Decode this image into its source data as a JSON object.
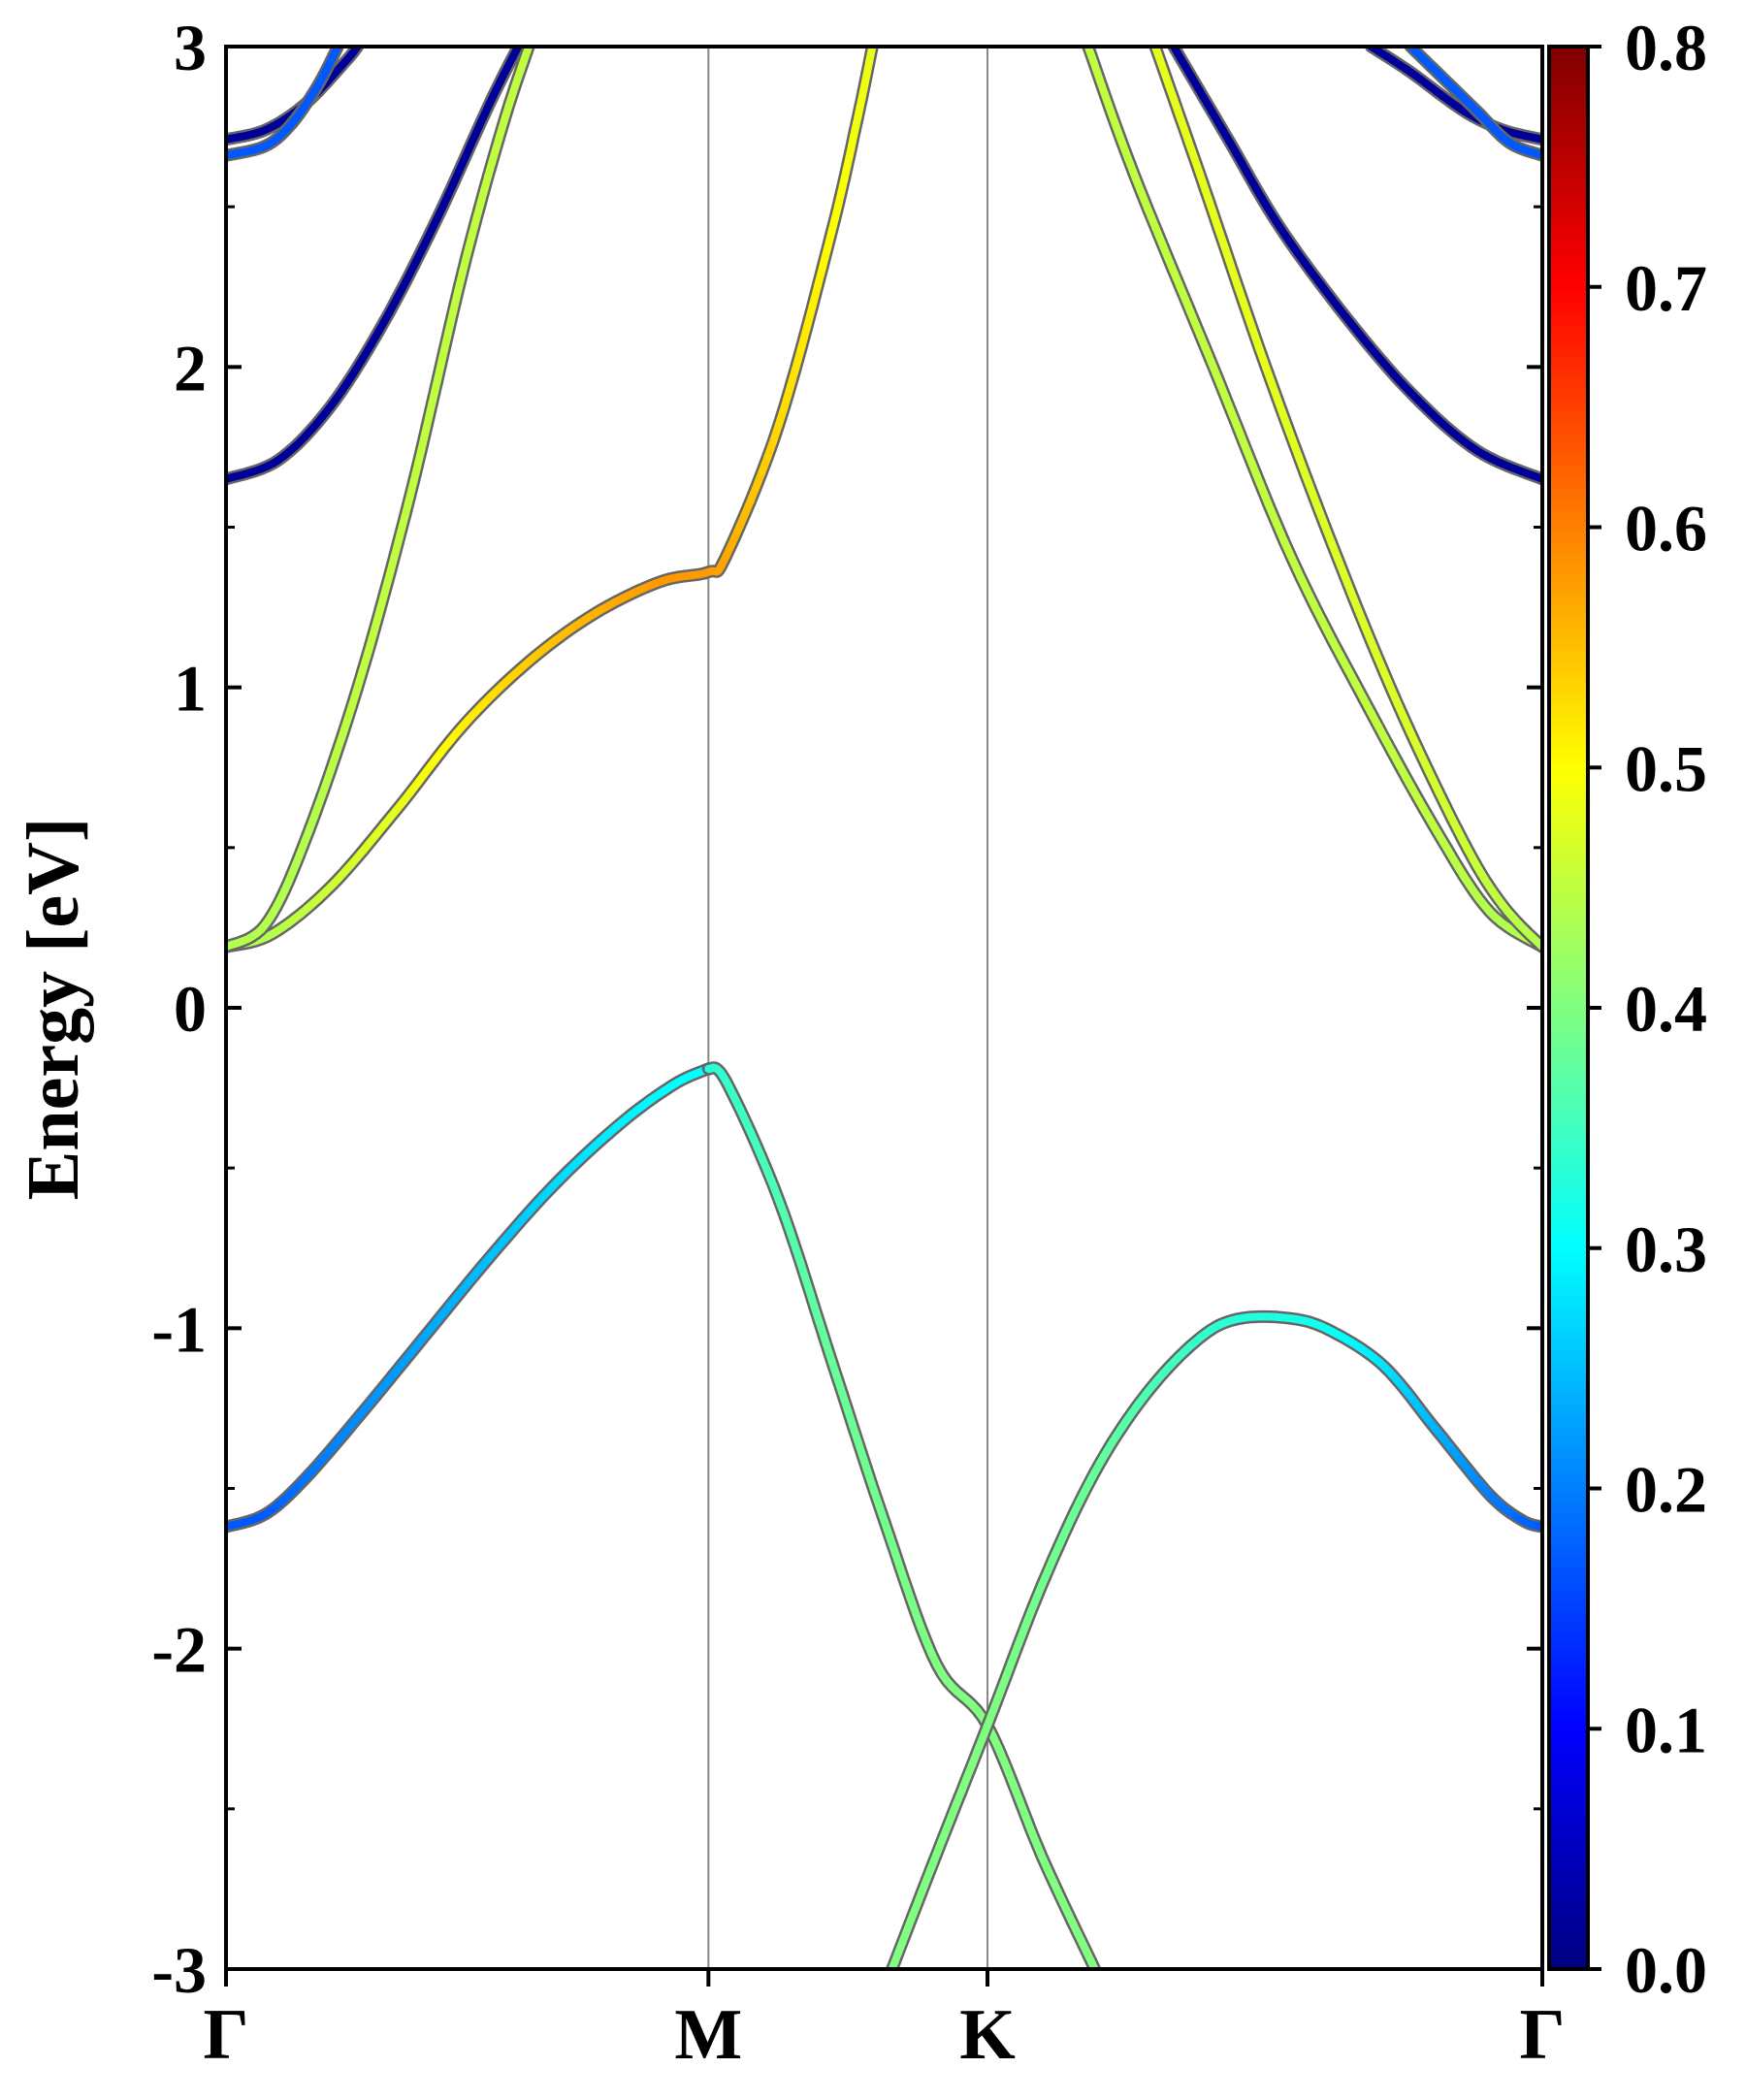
{
  "chart_data": {
    "type": "line",
    "subtype": "electronic band structure with colour-mapped projection weight",
    "title": "",
    "xlabel": "",
    "ylabel": "Energy [eV]",
    "ylim": [
      -3,
      3
    ],
    "y_ticks": [
      "3",
      "2",
      "1",
      "0",
      "-1",
      "-2",
      "-3"
    ],
    "y_minor_step": 0.5,
    "k_path": [
      {
        "label": "Γ",
        "pos": 0.0
      },
      {
        "label": "M",
        "pos": 0.3665
      },
      {
        "label": "K",
        "pos": 0.5785
      },
      {
        "label": "Γ",
        "pos": 1.0
      }
    ],
    "grid": false,
    "colorbar": {
      "colormap": "jet",
      "range": [
        0.0,
        0.8
      ],
      "tick_labels": [
        "0.8",
        "0.7",
        "0.6",
        "0.5",
        "0.4",
        "0.3",
        "0.2",
        "0.1",
        "0.0"
      ],
      "tick_values": [
        0.8,
        0.7,
        0.6,
        0.5,
        0.4,
        0.3,
        0.2,
        0.1,
        0.0
      ],
      "placement": "right"
    },
    "colors": {
      "axis": "#000000",
      "kline": "#888888",
      "band_edge": "#666666"
    },
    "bands": [
      {
        "points": [
          [
            0.0,
            -1.62
          ],
          [
            0.03,
            -1.58
          ],
          [
            0.06,
            -1.47
          ],
          [
            0.1,
            -1.28
          ],
          [
            0.15,
            -1.03
          ],
          [
            0.2,
            -0.78
          ],
          [
            0.25,
            -0.55
          ],
          [
            0.3,
            -0.36
          ],
          [
            0.34,
            -0.24
          ],
          [
            0.3665,
            -0.19
          ]
        ],
        "weights": [
          0.17,
          0.17,
          0.19,
          0.21,
          0.23,
          0.25,
          0.27,
          0.29,
          0.3,
          0.3
        ]
      },
      {
        "points": [
          [
            0.3665,
            -0.19
          ],
          [
            0.38,
            -0.23
          ],
          [
            0.42,
            -0.6
          ],
          [
            0.46,
            -1.1
          ],
          [
            0.5,
            -1.6
          ],
          [
            0.54,
            -2.05
          ],
          [
            0.5785,
            -2.24
          ],
          [
            0.62,
            -2.65
          ],
          [
            0.66,
            -3.0
          ]
        ],
        "weights": [
          0.32,
          0.34,
          0.36,
          0.38,
          0.39,
          0.4,
          0.4,
          0.4,
          0.4
        ]
      },
      {
        "points": [
          [
            0.506,
            -3.0
          ],
          [
            0.54,
            -2.64
          ],
          [
            0.5785,
            -2.24
          ],
          [
            0.62,
            -1.8
          ],
          [
            0.66,
            -1.45
          ],
          [
            0.7,
            -1.2
          ],
          [
            0.74,
            -1.03
          ],
          [
            0.77,
            -0.97
          ],
          [
            0.81,
            -0.97
          ],
          [
            0.84,
            -1.01
          ],
          [
            0.88,
            -1.12
          ],
          [
            0.92,
            -1.32
          ],
          [
            0.96,
            -1.52
          ],
          [
            0.985,
            -1.6
          ],
          [
            1.0,
            -1.62
          ]
        ],
        "weights": [
          0.4,
          0.4,
          0.4,
          0.39,
          0.38,
          0.36,
          0.34,
          0.33,
          0.32,
          0.31,
          0.28,
          0.24,
          0.2,
          0.18,
          0.17
        ]
      },
      {
        "points": [
          [
            0.0,
            0.19
          ],
          [
            0.035,
            0.23
          ],
          [
            0.08,
            0.38
          ],
          [
            0.13,
            0.62
          ],
          [
            0.18,
            0.88
          ],
          [
            0.23,
            1.08
          ],
          [
            0.28,
            1.23
          ],
          [
            0.33,
            1.33
          ],
          [
            0.3665,
            1.36
          ],
          [
            0.38,
            1.41
          ],
          [
            0.42,
            1.82
          ],
          [
            0.46,
            2.42
          ],
          [
            0.48,
            2.78
          ],
          [
            0.491,
            3.0
          ]
        ],
        "weights": [
          0.44,
          0.44,
          0.46,
          0.48,
          0.51,
          0.54,
          0.56,
          0.58,
          0.58,
          0.57,
          0.53,
          0.5,
          0.49,
          0.48
        ]
      },
      {
        "points": [
          [
            0.0,
            0.19
          ],
          [
            0.03,
            0.26
          ],
          [
            0.06,
            0.52
          ],
          [
            0.1,
            1.0
          ],
          [
            0.14,
            1.6
          ],
          [
            0.18,
            2.3
          ],
          [
            0.21,
            2.75
          ],
          [
            0.23,
            3.0
          ]
        ],
        "weights": [
          0.44,
          0.44,
          0.44,
          0.45,
          0.45,
          0.45,
          0.45,
          0.45
        ]
      },
      {
        "points": [
          [
            0.655,
            3.0
          ],
          [
            0.69,
            2.6
          ],
          [
            0.75,
            2.0
          ],
          [
            0.81,
            1.4
          ],
          [
            0.87,
            0.92
          ],
          [
            0.92,
            0.55
          ],
          [
            0.96,
            0.3
          ],
          [
            1.0,
            0.19
          ]
        ],
        "weights": [
          0.45,
          0.45,
          0.45,
          0.45,
          0.45,
          0.45,
          0.44,
          0.44
        ]
      },
      {
        "points": [
          [
            0.706,
            3.0
          ],
          [
            0.74,
            2.6
          ],
          [
            0.79,
            2.0
          ],
          [
            0.84,
            1.45
          ],
          [
            0.89,
            0.95
          ],
          [
            0.94,
            0.52
          ],
          [
            0.97,
            0.32
          ],
          [
            1.0,
            0.19
          ]
        ],
        "weights": [
          0.48,
          0.48,
          0.48,
          0.47,
          0.47,
          0.46,
          0.45,
          0.44
        ]
      },
      {
        "points": [
          [
            0.0,
            1.65
          ],
          [
            0.04,
            1.71
          ],
          [
            0.08,
            1.88
          ],
          [
            0.12,
            2.14
          ],
          [
            0.16,
            2.46
          ],
          [
            0.2,
            2.82
          ],
          [
            0.222,
            3.0
          ]
        ],
        "weights": [
          0.02,
          0.02,
          0.02,
          0.02,
          0.02,
          0.02,
          0.02
        ]
      },
      {
        "points": [
          [
            0.0,
            2.71
          ],
          [
            0.03,
            2.74
          ],
          [
            0.06,
            2.82
          ],
          [
            0.09,
            2.95
          ],
          [
            0.1,
            3.0
          ]
        ],
        "weights": [
          0.02,
          0.02,
          0.02,
          0.02,
          0.02
        ]
      },
      {
        "points": [
          [
            0.0,
            2.66
          ],
          [
            0.03,
            2.69
          ],
          [
            0.05,
            2.76
          ],
          [
            0.07,
            2.88
          ],
          [
            0.085,
            3.0
          ]
        ],
        "weights": [
          0.17,
          0.17,
          0.17,
          0.17,
          0.17
        ]
      },
      {
        "points": [
          [
            0.72,
            3.0
          ],
          [
            0.76,
            2.72
          ],
          [
            0.8,
            2.44
          ],
          [
            0.85,
            2.16
          ],
          [
            0.9,
            1.92
          ],
          [
            0.95,
            1.74
          ],
          [
            1.0,
            1.65
          ]
        ],
        "weights": [
          0.02,
          0.02,
          0.02,
          0.02,
          0.02,
          0.02,
          0.02
        ]
      },
      {
        "points": [
          [
            0.87,
            3.0
          ],
          [
            0.9,
            2.92
          ],
          [
            0.94,
            2.8
          ],
          [
            0.97,
            2.74
          ],
          [
            1.0,
            2.71
          ]
        ],
        "weights": [
          0.02,
          0.02,
          0.02,
          0.02,
          0.02
        ]
      },
      {
        "points": [
          [
            0.9,
            3.0
          ],
          [
            0.92,
            2.92
          ],
          [
            0.95,
            2.8
          ],
          [
            0.975,
            2.7
          ],
          [
            1.0,
            2.66
          ]
        ],
        "weights": [
          0.17,
          0.17,
          0.17,
          0.17,
          0.17
        ]
      }
    ]
  }
}
